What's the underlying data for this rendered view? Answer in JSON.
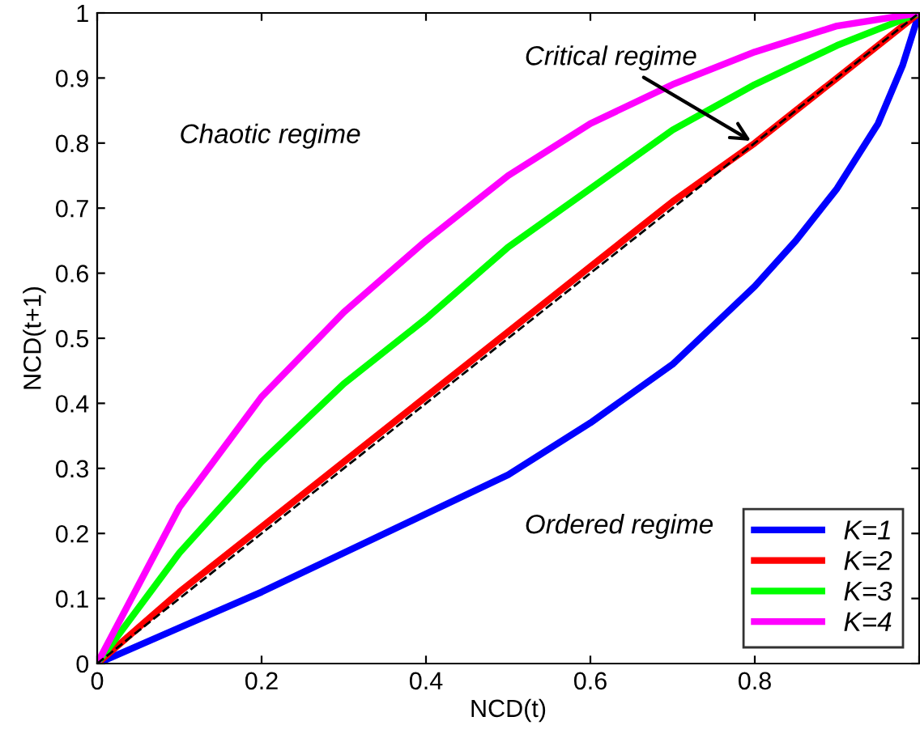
{
  "chart_data": {
    "type": "line",
    "xlabel": "NCD(t)",
    "ylabel": "NCD(t+1)",
    "xlim": [
      0,
      1
    ],
    "ylim": [
      0,
      1
    ],
    "xticks": [
      0,
      0.2,
      0.4,
      0.6,
      0.8,
      {
        "value": 1,
        "label": null
      }
    ],
    "yticks": [
      0,
      0.1,
      0.2,
      0.3,
      0.4,
      0.5,
      0.6,
      0.7,
      0.8,
      0.9,
      1
    ],
    "grid": false,
    "legend": "bottom right",
    "marker": "none",
    "series": [
      {
        "name": "K=1",
        "color": "#0000ff",
        "x": [
          0,
          0.1,
          0.2,
          0.3,
          0.4,
          0.5,
          0.6,
          0.7,
          0.8,
          0.85,
          0.9,
          0.95,
          0.98,
          1
        ],
        "values": [
          0,
          0.055,
          0.11,
          0.17,
          0.23,
          0.29,
          0.37,
          0.46,
          0.58,
          0.65,
          0.73,
          0.83,
          0.92,
          1
        ]
      },
      {
        "name": "K=2",
        "color": "#ff0000",
        "x": [
          0,
          0.1,
          0.2,
          0.3,
          0.4,
          0.5,
          0.6,
          0.7,
          0.8,
          0.9,
          1
        ],
        "values": [
          0,
          0.11,
          0.21,
          0.31,
          0.41,
          0.51,
          0.61,
          0.71,
          0.8,
          0.9,
          1
        ]
      },
      {
        "name": "K=3",
        "color": "#00ff00",
        "x": [
          0,
          0.1,
          0.2,
          0.3,
          0.4,
          0.5,
          0.6,
          0.7,
          0.8,
          0.9,
          1
        ],
        "values": [
          0,
          0.17,
          0.31,
          0.43,
          0.53,
          0.64,
          0.73,
          0.82,
          0.89,
          0.95,
          1
        ]
      },
      {
        "name": "K=4",
        "color": "#ff00ff",
        "x": [
          0,
          0.1,
          0.2,
          0.3,
          0.4,
          0.5,
          0.6,
          0.7,
          0.8,
          0.9,
          1
        ],
        "values": [
          0,
          0.24,
          0.41,
          0.54,
          0.65,
          0.75,
          0.83,
          0.89,
          0.94,
          0.98,
          1
        ]
      },
      {
        "color": "#000000",
        "line_style": "dashed",
        "x": [
          0,
          1
        ],
        "values": [
          0,
          1
        ]
      }
    ],
    "annotations": [
      "Chaotic regime",
      {
        "text": "Critical regime",
        "x": 0.8,
        "y": 0.8
      },
      "Ordered regime"
    ]
  }
}
